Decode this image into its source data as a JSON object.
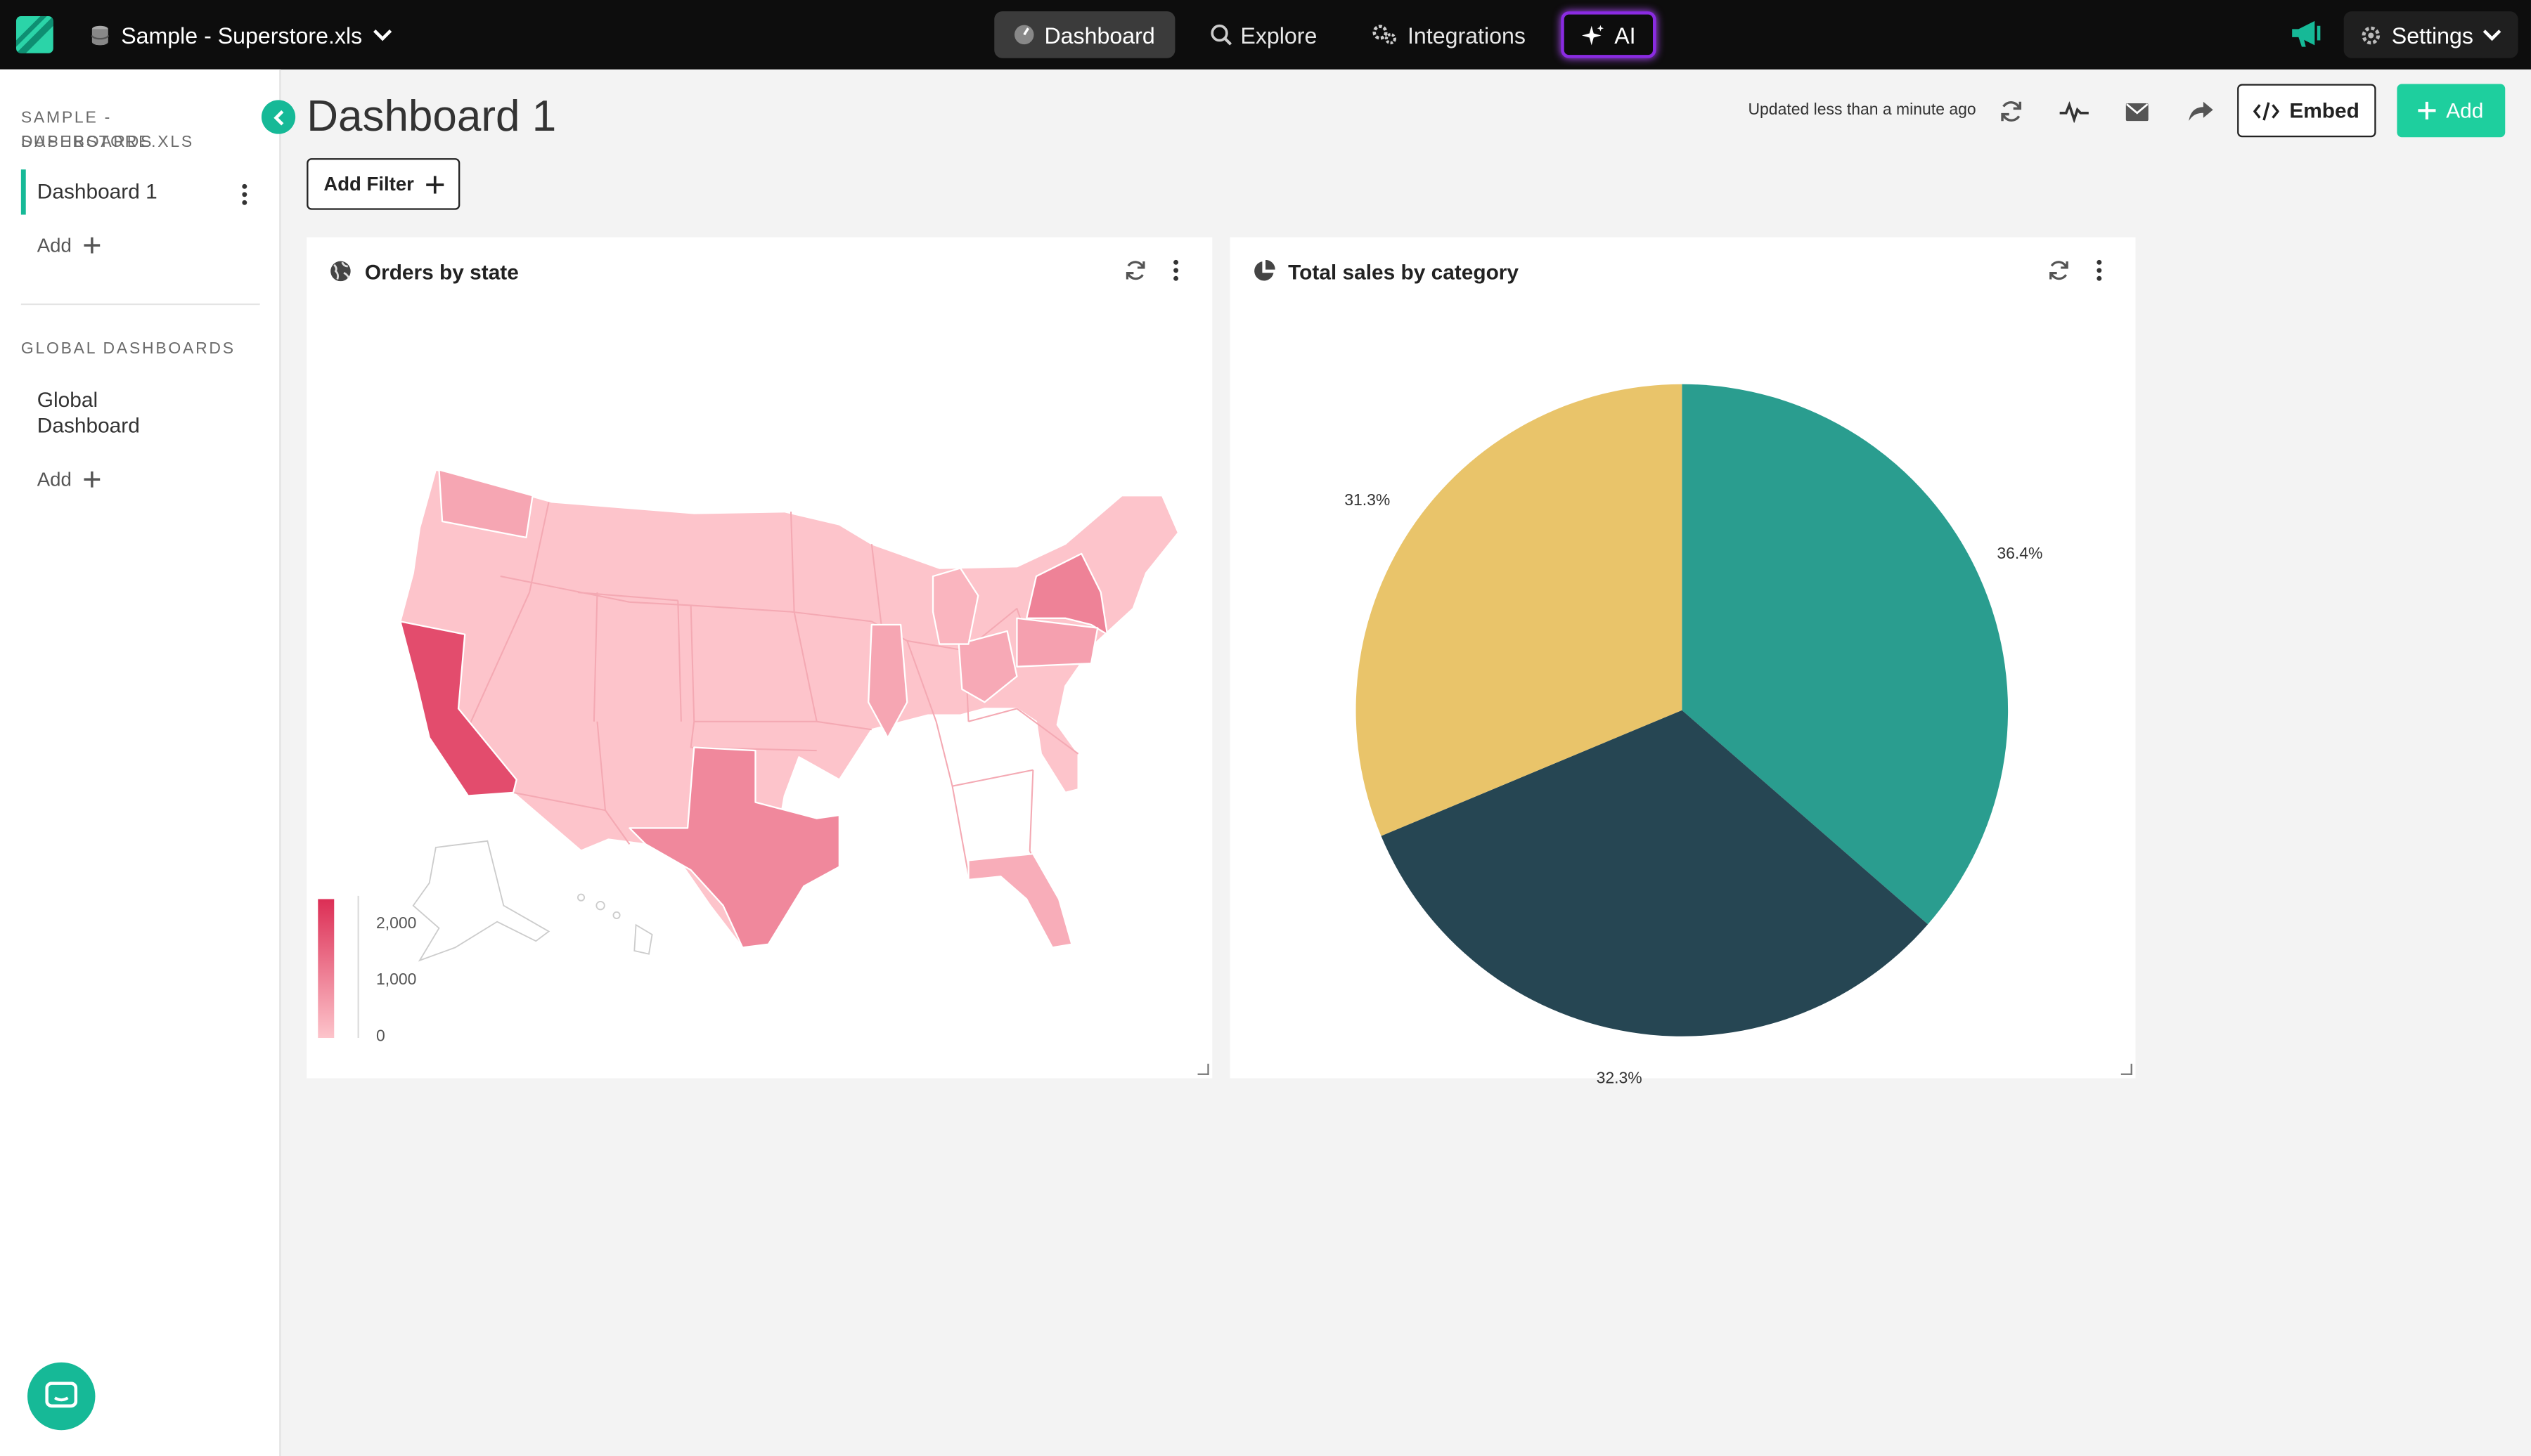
{
  "topbar": {
    "datasource": "Sample - Superstore.xls",
    "nav": [
      {
        "label": "Dashboard",
        "active": true
      },
      {
        "label": "Explore",
        "active": false
      },
      {
        "label": "Integrations",
        "active": false
      },
      {
        "label": "AI",
        "active": false
      }
    ],
    "settings_label": "Settings"
  },
  "sidebar": {
    "section_heading_1": "SAMPLE - SUPERSTORE.XLS",
    "section_heading_2": "DASHBOARDS",
    "dashboards": [
      {
        "label": "Dashboard 1",
        "active": true
      }
    ],
    "add_label": "Add",
    "global_heading": "GLOBAL DASHBOARDS",
    "global_item_line1": "Global",
    "global_item_line2": "Dashboard",
    "global_add_label": "Add"
  },
  "header": {
    "title": "Dashboard 1",
    "updated": "Updated less than a minute ago",
    "embed_label": "Embed",
    "add_label": "Add",
    "add_filter_label": "Add Filter"
  },
  "colors": {
    "accent": "#1ecf9e",
    "sidebar_accent": "#16b997",
    "map_low": "#fdc4cb",
    "map_high": "#dc2e55",
    "pie": [
      "#2a9d8f",
      "#264653",
      "#e9c46a"
    ]
  },
  "map_card": {
    "title": "Orders by state",
    "legend_ticks": [
      "2,000",
      "1,000",
      "0"
    ],
    "legend_max": 2500,
    "highlighted_states": [
      {
        "state": "California",
        "orders": 2000
      },
      {
        "state": "New York",
        "orders": 1100
      },
      {
        "state": "Texas",
        "orders": 1000
      },
      {
        "state": "Washington",
        "orders": 500
      },
      {
        "state": "Pennsylvania",
        "orders": 600
      },
      {
        "state": "Illinois",
        "orders": 500
      },
      {
        "state": "Ohio",
        "orders": 450
      },
      {
        "state": "Florida",
        "orders": 380
      },
      {
        "state": "Michigan",
        "orders": 250
      }
    ]
  },
  "chart_data": {
    "type": "pie",
    "title": "Total sales by category",
    "slices": [
      {
        "label": "36.4%",
        "value": 36.4
      },
      {
        "label": "32.3%",
        "value": 32.3
      },
      {
        "label": "31.3%",
        "value": 31.3
      }
    ]
  }
}
